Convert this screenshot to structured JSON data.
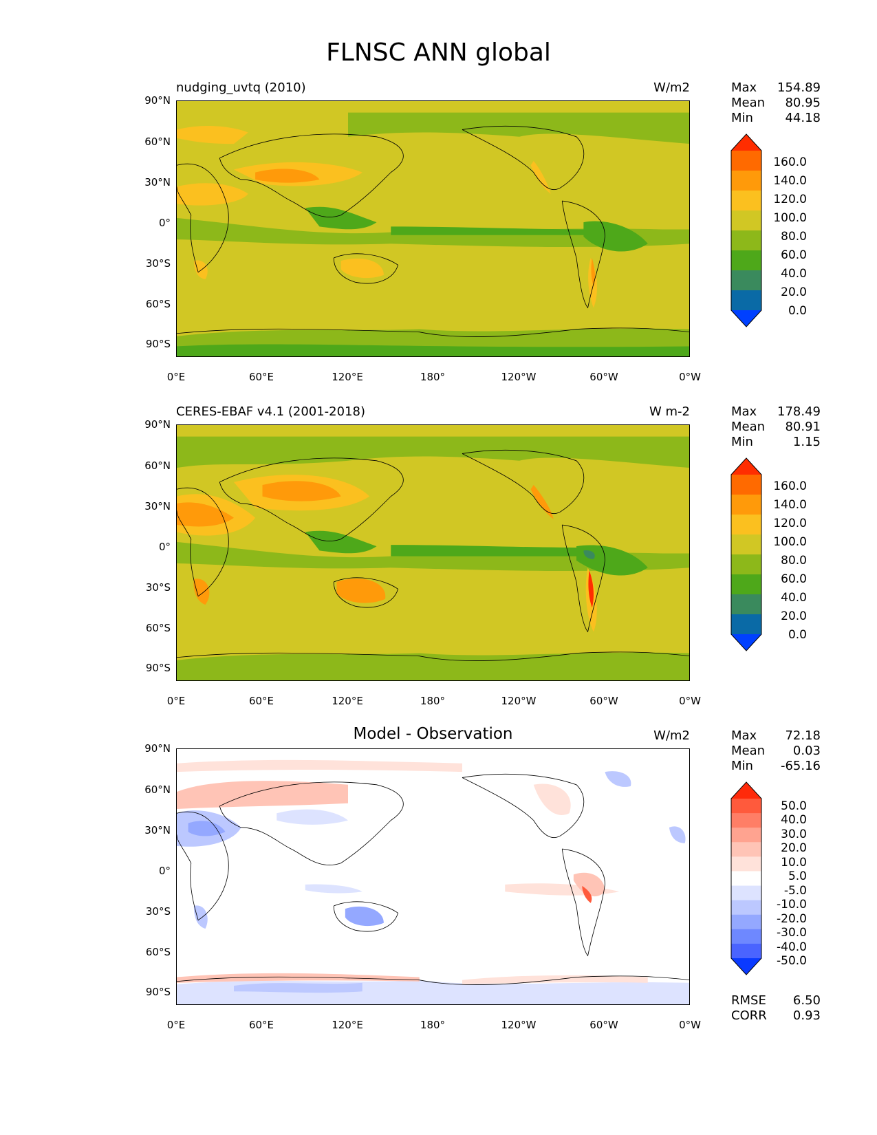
{
  "title": "FLNSC ANN global",
  "lat_ticks": [
    "90°N",
    "60°N",
    "30°N",
    "0°",
    "30°S",
    "60°S",
    "90°S"
  ],
  "lon_ticks": [
    "0°E",
    "60°E",
    "120°E",
    "180°",
    "120°W",
    "60°W",
    "0°W"
  ],
  "panels": [
    {
      "id": "model",
      "title_left": "nudging_uvtq (2010)",
      "title_center": "",
      "units": "W/m2",
      "stats": {
        "max_label": "Max",
        "max": "154.89",
        "mean_label": "Mean",
        "mean": "80.95",
        "min_label": "Min",
        "min": "44.18"
      },
      "colorbar": {
        "labels": [
          "160.0",
          "140.0",
          "120.0",
          "100.0",
          "80.0",
          "60.0",
          "40.0",
          "20.0",
          "0.0"
        ],
        "colors": [
          "#ff2d00",
          "#ff6a00",
          "#ff9a0a",
          "#fbc01f",
          "#d1c724",
          "#8db81a",
          "#4ea81a",
          "#3a8a5d",
          "#0a6aa6",
          "#0040ff"
        ]
      }
    },
    {
      "id": "obs",
      "title_left": "CERES-EBAF v4.1 (2001-2018)",
      "title_center": "",
      "units": "W m-2",
      "stats": {
        "max_label": "Max",
        "max": "178.49",
        "mean_label": "Mean",
        "mean": "80.91",
        "min_label": "Min",
        "min": "1.15"
      },
      "colorbar": {
        "labels": [
          "160.0",
          "140.0",
          "120.0",
          "100.0",
          "80.0",
          "60.0",
          "40.0",
          "20.0",
          "0.0"
        ],
        "colors": [
          "#ff2d00",
          "#ff6a00",
          "#ff9a0a",
          "#fbc01f",
          "#d1c724",
          "#8db81a",
          "#4ea81a",
          "#3a8a5d",
          "#0a6aa6",
          "#0040ff"
        ]
      }
    },
    {
      "id": "diff",
      "title_left": "",
      "title_center": "Model - Observation",
      "units": "W/m2",
      "stats": {
        "max_label": "Max",
        "max": "72.18",
        "mean_label": "Mean",
        "mean": "0.03",
        "min_label": "Min",
        "min": "-65.16"
      },
      "colorbar": {
        "labels": [
          "50.0",
          "40.0",
          "30.0",
          "20.0",
          "10.0",
          "5.0",
          "-5.0",
          "-10.0",
          "-20.0",
          "-30.0",
          "-40.0",
          "-50.0"
        ],
        "colors": [
          "#ff2a0a",
          "#ff5a3c",
          "#ff7e66",
          "#ffa390",
          "#ffc4b6",
          "#ffe2da",
          "#ffffff",
          "#dde3ff",
          "#bcc8ff",
          "#94a8ff",
          "#6e88ff",
          "#4a64ff",
          "#0a3aff"
        ]
      },
      "metrics": {
        "rmse_label": "RMSE",
        "rmse": "6.50",
        "corr_label": "CORR",
        "corr": "0.93"
      }
    }
  ]
}
